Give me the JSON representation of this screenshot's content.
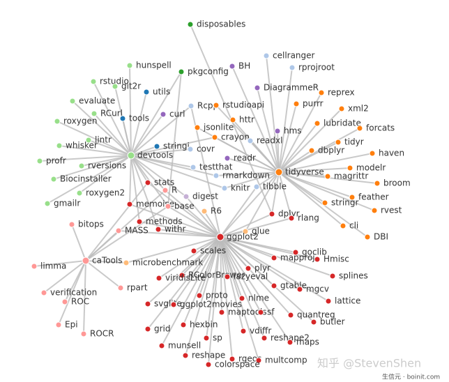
{
  "nodes": [
    {
      "label": "disposables",
      "color": "#2ca02c"
    },
    {
      "label": "hunspell",
      "color": "#98df8a"
    },
    {
      "label": "pkgconfig",
      "color": "#2ca02c"
    },
    {
      "label": "BH",
      "color": "#9467bd"
    },
    {
      "label": "cellranger",
      "color": "#aec7e8"
    },
    {
      "label": "rprojroot",
      "color": "#aec7e8"
    },
    {
      "label": "rstudio",
      "color": "#98df8a"
    },
    {
      "label": "git2r",
      "color": "#98df8a"
    },
    {
      "label": "utils",
      "color": "#1f77b4"
    },
    {
      "label": "DiagrammeR",
      "color": "#9467bd"
    },
    {
      "label": "reprex",
      "color": "#ff7f0e"
    },
    {
      "label": "evaluate",
      "color": "#98df8a"
    },
    {
      "label": "Rcpp",
      "color": "#aec7e8"
    },
    {
      "label": "rstudioapi",
      "color": "#ff7f0e"
    },
    {
      "label": "purrr",
      "color": "#ff7f0e"
    },
    {
      "label": "xml2",
      "color": "#ff7f0e"
    },
    {
      "label": "RCurl",
      "color": "#98df8a"
    },
    {
      "label": "tools",
      "color": "#1f77b4"
    },
    {
      "label": "curl",
      "color": "#9467bd"
    },
    {
      "label": "httr",
      "color": "#ff7f0e"
    },
    {
      "label": "roxygen",
      "color": "#98df8a"
    },
    {
      "label": "jsonlite",
      "color": "#ff7f0e"
    },
    {
      "label": "lubridate",
      "color": "#ff7f0e"
    },
    {
      "label": "forcats",
      "color": "#ff7f0e"
    },
    {
      "label": "hms",
      "color": "#9467bd"
    },
    {
      "label": "lintr",
      "color": "#98df8a"
    },
    {
      "label": "crayon",
      "color": "#ff7f0e"
    },
    {
      "label": "readxl",
      "color": "#aec7e8"
    },
    {
      "label": "tidyr",
      "color": "#ff7f0e"
    },
    {
      "label": "whisker",
      "color": "#98df8a"
    },
    {
      "label": "stringi",
      "color": "#1f77b4"
    },
    {
      "label": "covr",
      "color": "#aec7e8"
    },
    {
      "label": "dbplyr",
      "color": "#ff7f0e"
    },
    {
      "label": "haven",
      "color": "#ff7f0e"
    },
    {
      "label": "devtools",
      "color": "#98df8a"
    },
    {
      "label": "readr",
      "color": "#9467bd"
    },
    {
      "label": "profr",
      "color": "#98df8a"
    },
    {
      "label": "rversions",
      "color": "#98df8a"
    },
    {
      "label": "testthat",
      "color": "#aec7e8"
    },
    {
      "label": "modelr",
      "color": "#ff7f0e"
    },
    {
      "label": "rmarkdown",
      "color": "#aec7e8"
    },
    {
      "label": "tidyverse",
      "color": "#ff7f0e"
    },
    {
      "label": "magrittr",
      "color": "#ff7f0e"
    },
    {
      "label": "Biocinstaller",
      "color": "#98df8a"
    },
    {
      "label": "stats",
      "color": "#d62728"
    },
    {
      "label": "broom",
      "color": "#ff7f0e"
    },
    {
      "label": "knitr",
      "color": "#aec7e8"
    },
    {
      "label": "tibble",
      "color": "#aec7e8"
    },
    {
      "label": "R",
      "color": "#ff9896"
    },
    {
      "label": "roxygen2",
      "color": "#98df8a"
    },
    {
      "label": "digest",
      "color": "#c5b0d5"
    },
    {
      "label": "feather",
      "color": "#ff7f0e"
    },
    {
      "label": "gmailr",
      "color": "#98df8a"
    },
    {
      "label": "memoise",
      "color": "#d62728"
    },
    {
      "label": "base",
      "color": "#ff9896"
    },
    {
      "label": "stringr",
      "color": "#ff7f0e"
    },
    {
      "label": "R6",
      "color": "#ffbb78"
    },
    {
      "label": "rvest",
      "color": "#ff7f0e"
    },
    {
      "label": "dplyr",
      "color": "#d62728"
    },
    {
      "label": "rlang",
      "color": "#d62728"
    },
    {
      "label": "methods",
      "color": "#d62728"
    },
    {
      "label": "bitops",
      "color": "#ff9896"
    },
    {
      "label": "cli",
      "color": "#ff7f0e"
    },
    {
      "label": "withr",
      "color": "#d62728"
    },
    {
      "label": "MASS",
      "color": "#ff9896"
    },
    {
      "label": "glue",
      "color": "#ffbb78"
    },
    {
      "label": "ggplot2",
      "color": "#d62728"
    },
    {
      "label": "DBI",
      "color": "#ff7f0e"
    },
    {
      "label": "scales",
      "color": "#d62728"
    },
    {
      "label": "goclib",
      "color": "#d62728"
    },
    {
      "label": "mapproj",
      "color": "#d62728"
    },
    {
      "label": "Hmisc",
      "color": "#d62728"
    },
    {
      "label": "caTools",
      "color": "#ff9896"
    },
    {
      "label": "microbenchmark",
      "color": "#ffbb78"
    },
    {
      "label": "limma",
      "color": "#ff9896"
    },
    {
      "label": "plyr",
      "color": "#d62728"
    },
    {
      "label": "RColorBrewer",
      "color": "#d62728"
    },
    {
      "label": "viridisLite",
      "color": "#d62728"
    },
    {
      "label": "lazyeval",
      "color": "#d62728"
    },
    {
      "label": "splines",
      "color": "#d62728"
    },
    {
      "label": "rpart",
      "color": "#ff9896"
    },
    {
      "label": "gtable",
      "color": "#d62728"
    },
    {
      "label": "mgcv",
      "color": "#d62728"
    },
    {
      "label": "verification",
      "color": "#ff9896"
    },
    {
      "label": "proto",
      "color": "#d62728"
    },
    {
      "label": "svglite",
      "color": "#d62728"
    },
    {
      "label": "ggplot2movies",
      "color": "#d62728"
    },
    {
      "label": "nlme",
      "color": "#d62728"
    },
    {
      "label": "lattice",
      "color": "#d62728"
    },
    {
      "label": "ROC",
      "color": "#ff9896"
    },
    {
      "label": "maptools",
      "color": "#d62728"
    },
    {
      "label": "sf",
      "color": "#d62728"
    },
    {
      "label": "quantreg",
      "color": "#d62728"
    },
    {
      "label": "butler",
      "color": "#d62728"
    },
    {
      "label": "Epi",
      "color": "#ff9896"
    },
    {
      "label": "grid",
      "color": "#d62728"
    },
    {
      "label": "hexbin",
      "color": "#d62728"
    },
    {
      "label": "vdiffr",
      "color": "#d62728"
    },
    {
      "label": "ROCR",
      "color": "#ff9896"
    },
    {
      "label": "sp",
      "color": "#d62728"
    },
    {
      "label": "reshape2",
      "color": "#d62728"
    },
    {
      "label": "maps",
      "color": "#d62728"
    },
    {
      "label": "munsell",
      "color": "#d62728"
    },
    {
      "label": "reshape",
      "color": "#d62728"
    },
    {
      "label": "rgeos",
      "color": "#d62728"
    },
    {
      "label": "multcomp",
      "color": "#d62728"
    },
    {
      "label": "colorspace",
      "color": "#d62728"
    }
  ],
  "watermark": {
    "main": "知乎 @StevenShen",
    "sub": "生信元 · boinit.com"
  }
}
